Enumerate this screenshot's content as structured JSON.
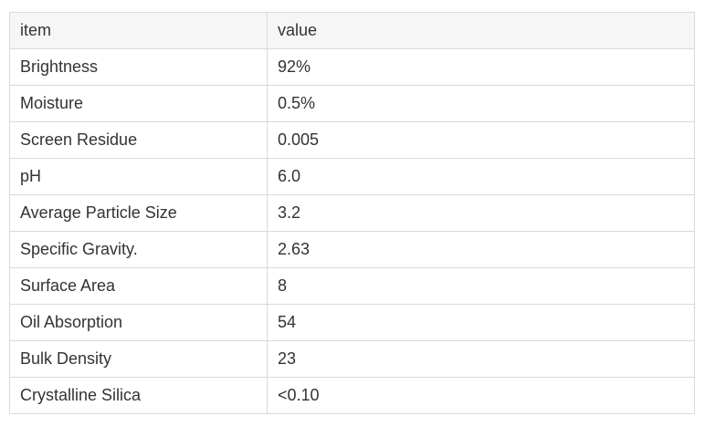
{
  "table": {
    "headers": [
      "item",
      "value"
    ],
    "rows": [
      {
        "item": "Brightness",
        "value": "92%"
      },
      {
        "item": "Moisture",
        "value": "0.5%"
      },
      {
        "item": "Screen Residue",
        "value": "0.005"
      },
      {
        "item": "pH",
        "value": "6.0"
      },
      {
        "item": "Average Particle Size",
        "value": "3.2"
      },
      {
        "item": "Specific Gravity.",
        "value": "2.63"
      },
      {
        "item": "Surface Area",
        "value": "8"
      },
      {
        "item": "Oil Absorption",
        "value": "54"
      },
      {
        "item": "Bulk Density",
        "value": "23"
      },
      {
        "item": "Crystalline Silica",
        "value": "<0.10"
      }
    ]
  }
}
